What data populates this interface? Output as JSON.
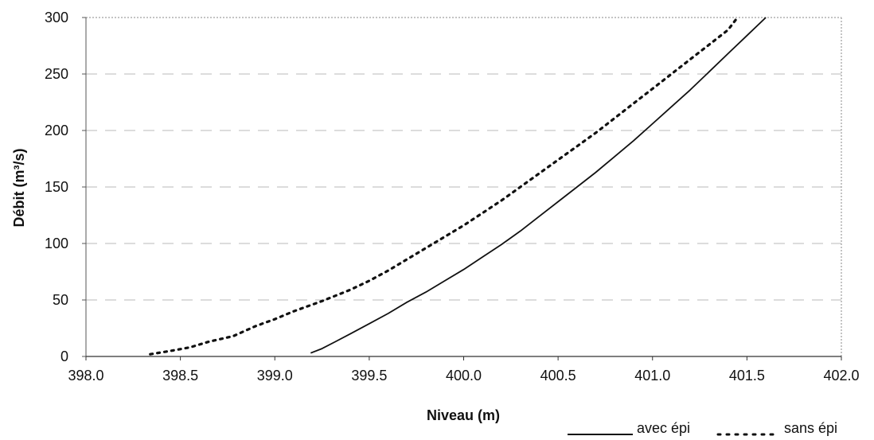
{
  "chart_data": {
    "type": "line",
    "xlabel": "Niveau (m)",
    "ylabel": "Débit (m³/s)",
    "xlim": [
      398.0,
      402.0
    ],
    "ylim": [
      0,
      300
    ],
    "x_ticks": [
      "398.0",
      "398.5",
      "399.0",
      "399.5",
      "400.0",
      "400.5",
      "401.0",
      "401.5",
      "402.0"
    ],
    "y_ticks": [
      "0",
      "50",
      "100",
      "150",
      "200",
      "250",
      "300"
    ],
    "grid": "horizontal dashed",
    "legend_position": "bottom-right",
    "series": [
      {
        "name": "avec épi",
        "style": "solid",
        "color": "#111111",
        "points": [
          [
            399.19,
            3
          ],
          [
            399.25,
            7
          ],
          [
            399.32,
            13
          ],
          [
            399.4,
            20
          ],
          [
            399.5,
            29
          ],
          [
            399.6,
            38
          ],
          [
            399.7,
            48
          ],
          [
            399.8,
            57
          ],
          [
            399.9,
            67
          ],
          [
            400.0,
            77
          ],
          [
            400.1,
            88
          ],
          [
            400.2,
            99
          ],
          [
            400.3,
            111
          ],
          [
            400.4,
            124
          ],
          [
            400.5,
            137
          ],
          [
            400.6,
            150
          ],
          [
            400.7,
            163
          ],
          [
            400.8,
            177
          ],
          [
            400.9,
            191
          ],
          [
            401.0,
            206
          ],
          [
            401.1,
            221
          ],
          [
            401.2,
            236
          ],
          [
            401.3,
            252
          ],
          [
            401.4,
            268
          ],
          [
            401.5,
            284
          ],
          [
            401.6,
            300
          ]
        ]
      },
      {
        "name": "sans épi",
        "style": "dotted",
        "color": "#111111",
        "points": [
          [
            398.34,
            2
          ],
          [
            398.45,
            5
          ],
          [
            398.55,
            8
          ],
          [
            398.65,
            13
          ],
          [
            398.78,
            18
          ],
          [
            398.9,
            27
          ],
          [
            399.0,
            33
          ],
          [
            399.1,
            40
          ],
          [
            399.25,
            49
          ],
          [
            399.4,
            59
          ],
          [
            399.5,
            67
          ],
          [
            399.6,
            76
          ],
          [
            399.7,
            86
          ],
          [
            399.8,
            96
          ],
          [
            399.9,
            106
          ],
          [
            400.0,
            116
          ],
          [
            400.1,
            127
          ],
          [
            400.2,
            138
          ],
          [
            400.3,
            150
          ],
          [
            400.4,
            162
          ],
          [
            400.5,
            174
          ],
          [
            400.6,
            186
          ],
          [
            400.7,
            198
          ],
          [
            400.8,
            211
          ],
          [
            400.9,
            224
          ],
          [
            401.0,
            237
          ],
          [
            401.1,
            250
          ],
          [
            401.2,
            263
          ],
          [
            401.3,
            276
          ],
          [
            401.4,
            289
          ],
          [
            401.45,
            300
          ]
        ]
      }
    ]
  }
}
